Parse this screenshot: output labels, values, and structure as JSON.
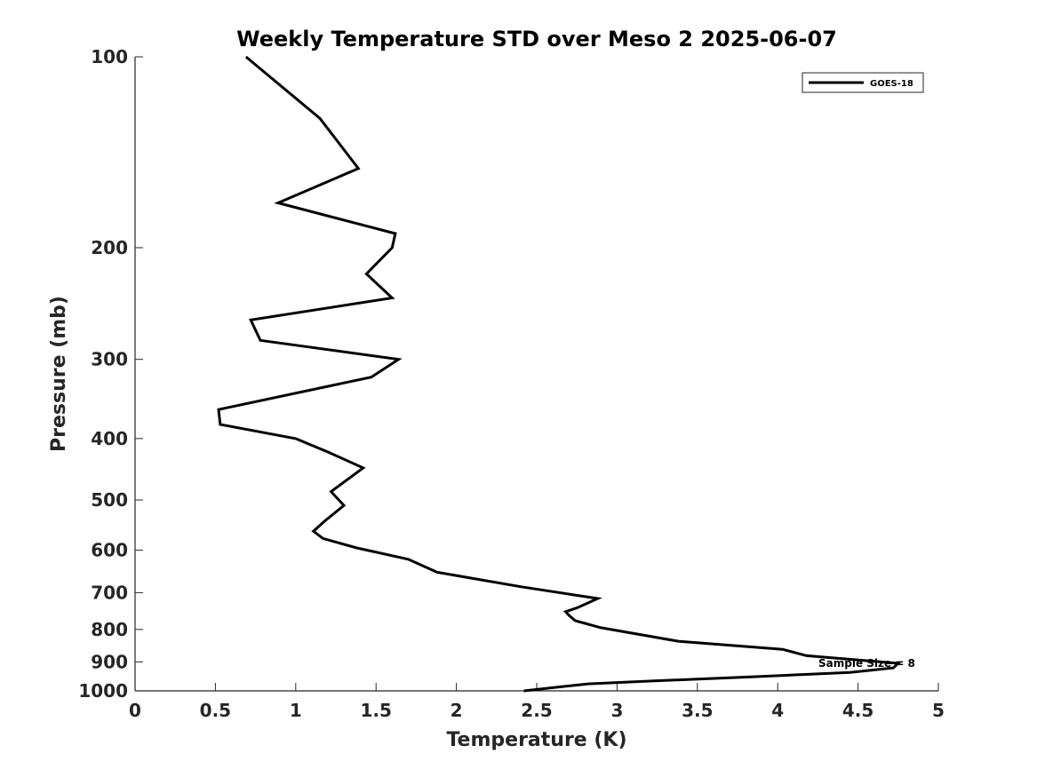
{
  "chart_data": {
    "type": "line",
    "title": "Weekly Temperature STD over Meso 2 2025-06-07",
    "xlabel": "Temperature (K)",
    "ylabel": "Pressure (mb)",
    "xlim": [
      0,
      5
    ],
    "ylim": [
      100,
      1000
    ],
    "yscale": "log",
    "y_reversed": true,
    "xticks": [
      0,
      0.5,
      1,
      1.5,
      2,
      2.5,
      3,
      3.5,
      4,
      4.5,
      5
    ],
    "xtick_labels": [
      "0",
      "0.5",
      "1",
      "1.5",
      "2",
      "2.5",
      "3",
      "3.5",
      "4",
      "4.5",
      "5"
    ],
    "yticks": [
      100,
      200,
      300,
      400,
      500,
      600,
      700,
      800,
      900,
      1000
    ],
    "ytick_labels": [
      "100",
      "200",
      "300",
      "400",
      "500",
      "600",
      "700",
      "800",
      "900",
      "1000"
    ],
    "grid": false,
    "legend_position": "top-right",
    "annotation": "Sample Size = 8",
    "series": [
      {
        "name": "GOES-18",
        "color": "#000000",
        "points": [
          [
            0.69,
            100
          ],
          [
            1.15,
            125
          ],
          [
            1.39,
            150
          ],
          [
            0.89,
            170
          ],
          [
            1.62,
            190
          ],
          [
            1.6,
            200
          ],
          [
            1.44,
            220
          ],
          [
            1.6,
            240
          ],
          [
            0.72,
            260
          ],
          [
            0.78,
            280
          ],
          [
            1.64,
            300
          ],
          [
            1.47,
            320
          ],
          [
            0.52,
            360
          ],
          [
            0.53,
            380
          ],
          [
            1.0,
            400
          ],
          [
            1.2,
            420
          ],
          [
            1.42,
            445
          ],
          [
            1.22,
            485
          ],
          [
            1.3,
            510
          ],
          [
            1.18,
            540
          ],
          [
            1.11,
            560
          ],
          [
            1.17,
            575
          ],
          [
            1.38,
            595
          ],
          [
            1.7,
            620
          ],
          [
            1.88,
            650
          ],
          [
            2.4,
            685
          ],
          [
            2.72,
            705
          ],
          [
            2.88,
            715
          ],
          [
            2.75,
            740
          ],
          [
            2.68,
            750
          ],
          [
            2.7,
            760
          ],
          [
            2.74,
            775
          ],
          [
            2.9,
            795
          ],
          [
            3.38,
            835
          ],
          [
            4.03,
            860
          ],
          [
            4.18,
            880
          ],
          [
            4.75,
            905
          ],
          [
            4.72,
            920
          ],
          [
            4.45,
            935
          ],
          [
            3.85,
            950
          ],
          [
            3.2,
            965
          ],
          [
            2.82,
            975
          ],
          [
            2.42,
            1000
          ]
        ]
      }
    ]
  }
}
